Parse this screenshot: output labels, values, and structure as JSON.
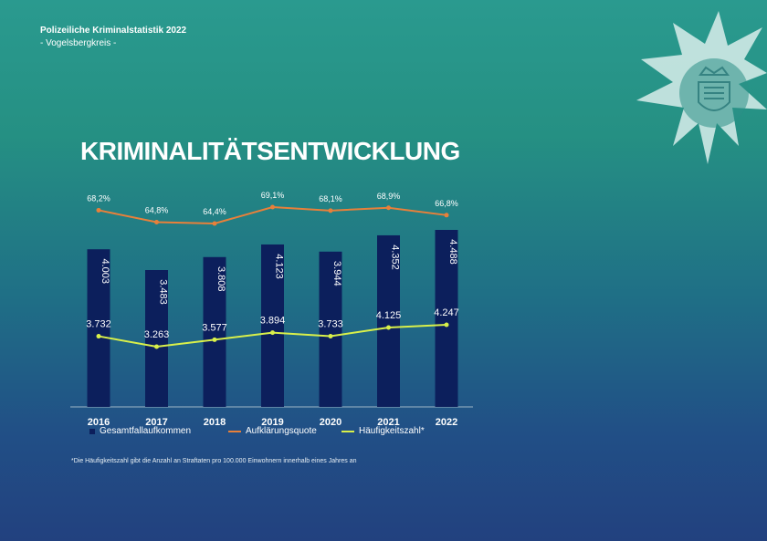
{
  "header": {
    "title": "Polizeiliche Kriminalstatistik 2022",
    "subtitle": "- Vogelsbergkreis -"
  },
  "page_title": "KRIMINALITÄTSENTWICKLUNG",
  "footnote": "*Die Häufigkeitszahl gibt die Anzahl an Straftaten pro 100.000 Einwohnern innerhalb eines Jahres an",
  "colors": {
    "bar": "#0c1f5c",
    "aufklaerung": "#e8803a",
    "haeufigkeit": "#d9f04a",
    "badge": "#cfe9e6"
  },
  "badge_icon": "police-star-emblem-icon",
  "chart_data": {
    "type": "bar",
    "categories": [
      "2016",
      "2017",
      "2018",
      "2019",
      "2020",
      "2021",
      "2022"
    ],
    "series": [
      {
        "name": "Gesamtfallaufkommen",
        "type": "bar",
        "values": [
          4003,
          3483,
          3808,
          4123,
          3944,
          4352,
          4488
        ],
        "labels": [
          "4.003",
          "3.483",
          "3.808",
          "4.123",
          "3.944",
          "4.352",
          "4.488"
        ]
      },
      {
        "name": "Aufklärungsquote",
        "type": "line",
        "values": [
          68.2,
          64.8,
          64.4,
          69.1,
          68.1,
          68.9,
          66.8
        ],
        "labels": [
          "68,2%",
          "64,8%",
          "64,4%",
          "69,1%",
          "68,1%",
          "68,9%",
          "66,8%"
        ]
      },
      {
        "name": "Häufigkeitszahl*",
        "type": "line",
        "values": [
          3732,
          3263,
          3577,
          3894,
          3733,
          4125,
          4247
        ],
        "labels": [
          "3.732",
          "3.263",
          "3.577",
          "3.894",
          "3.733",
          "4.125",
          "4.247"
        ]
      }
    ],
    "legend_position": "bottom",
    "grid": false
  }
}
